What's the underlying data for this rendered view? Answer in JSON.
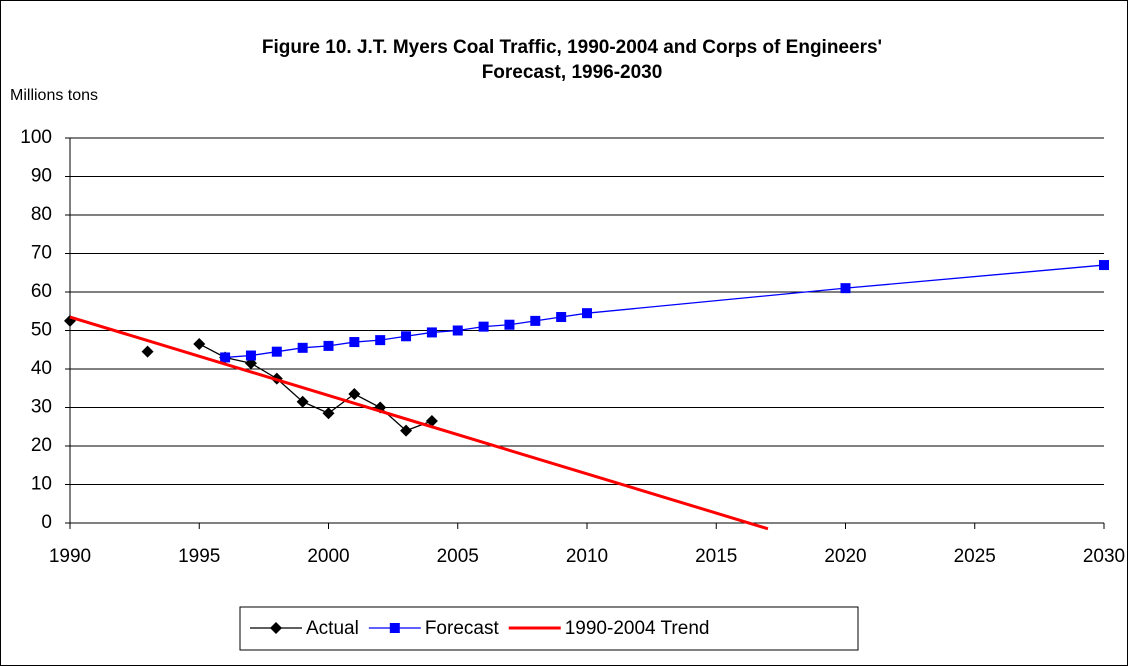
{
  "chart_data": {
    "type": "line",
    "title": [
      "Figure 10.  J.T. Myers Coal Traffic, 1990-2004 and Corps of Engineers'",
      "Forecast, 1996-2030"
    ],
    "y_label": "Millions tons",
    "xlim": [
      1990,
      2030
    ],
    "xticks": [
      1990,
      1995,
      2000,
      2005,
      2010,
      2015,
      2020,
      2025,
      2030
    ],
    "ylim": [
      0,
      100
    ],
    "yticks": [
      0,
      10,
      20,
      30,
      40,
      50,
      60,
      70,
      80,
      90,
      100
    ],
    "grid": true,
    "legend": "bottom",
    "series": [
      {
        "name": "Actual",
        "color": "#000000",
        "marker": "diamond",
        "x": [
          1990,
          1991,
          1992,
          1993,
          1994,
          1995,
          1996,
          1997,
          1998,
          1999,
          2000,
          2001,
          2002,
          2003,
          2004
        ],
        "values": [
          52.5,
          null,
          null,
          44.5,
          null,
          46.5,
          43,
          41.5,
          37.5,
          31.5,
          28.5,
          33.5,
          30,
          24,
          26.5
        ]
      },
      {
        "name": "Forecast",
        "color": "#0000ff",
        "marker": "square",
        "x": [
          1996,
          1997,
          1998,
          1999,
          2000,
          2001,
          2002,
          2003,
          2004,
          2005,
          2006,
          2007,
          2008,
          2009,
          2010,
          2020,
          2030
        ],
        "values": [
          43,
          43.5,
          44.5,
          45.5,
          46,
          47,
          47.5,
          48.5,
          49.5,
          50,
          51,
          51.5,
          52.5,
          53.5,
          54.5,
          61,
          67
        ]
      },
      {
        "name": "1990-2004 Trend",
        "color": "#ff0000",
        "marker": "none",
        "width": 3,
        "x": [
          1990,
          2017
        ],
        "values": [
          53.5,
          -1.5
        ]
      }
    ]
  }
}
